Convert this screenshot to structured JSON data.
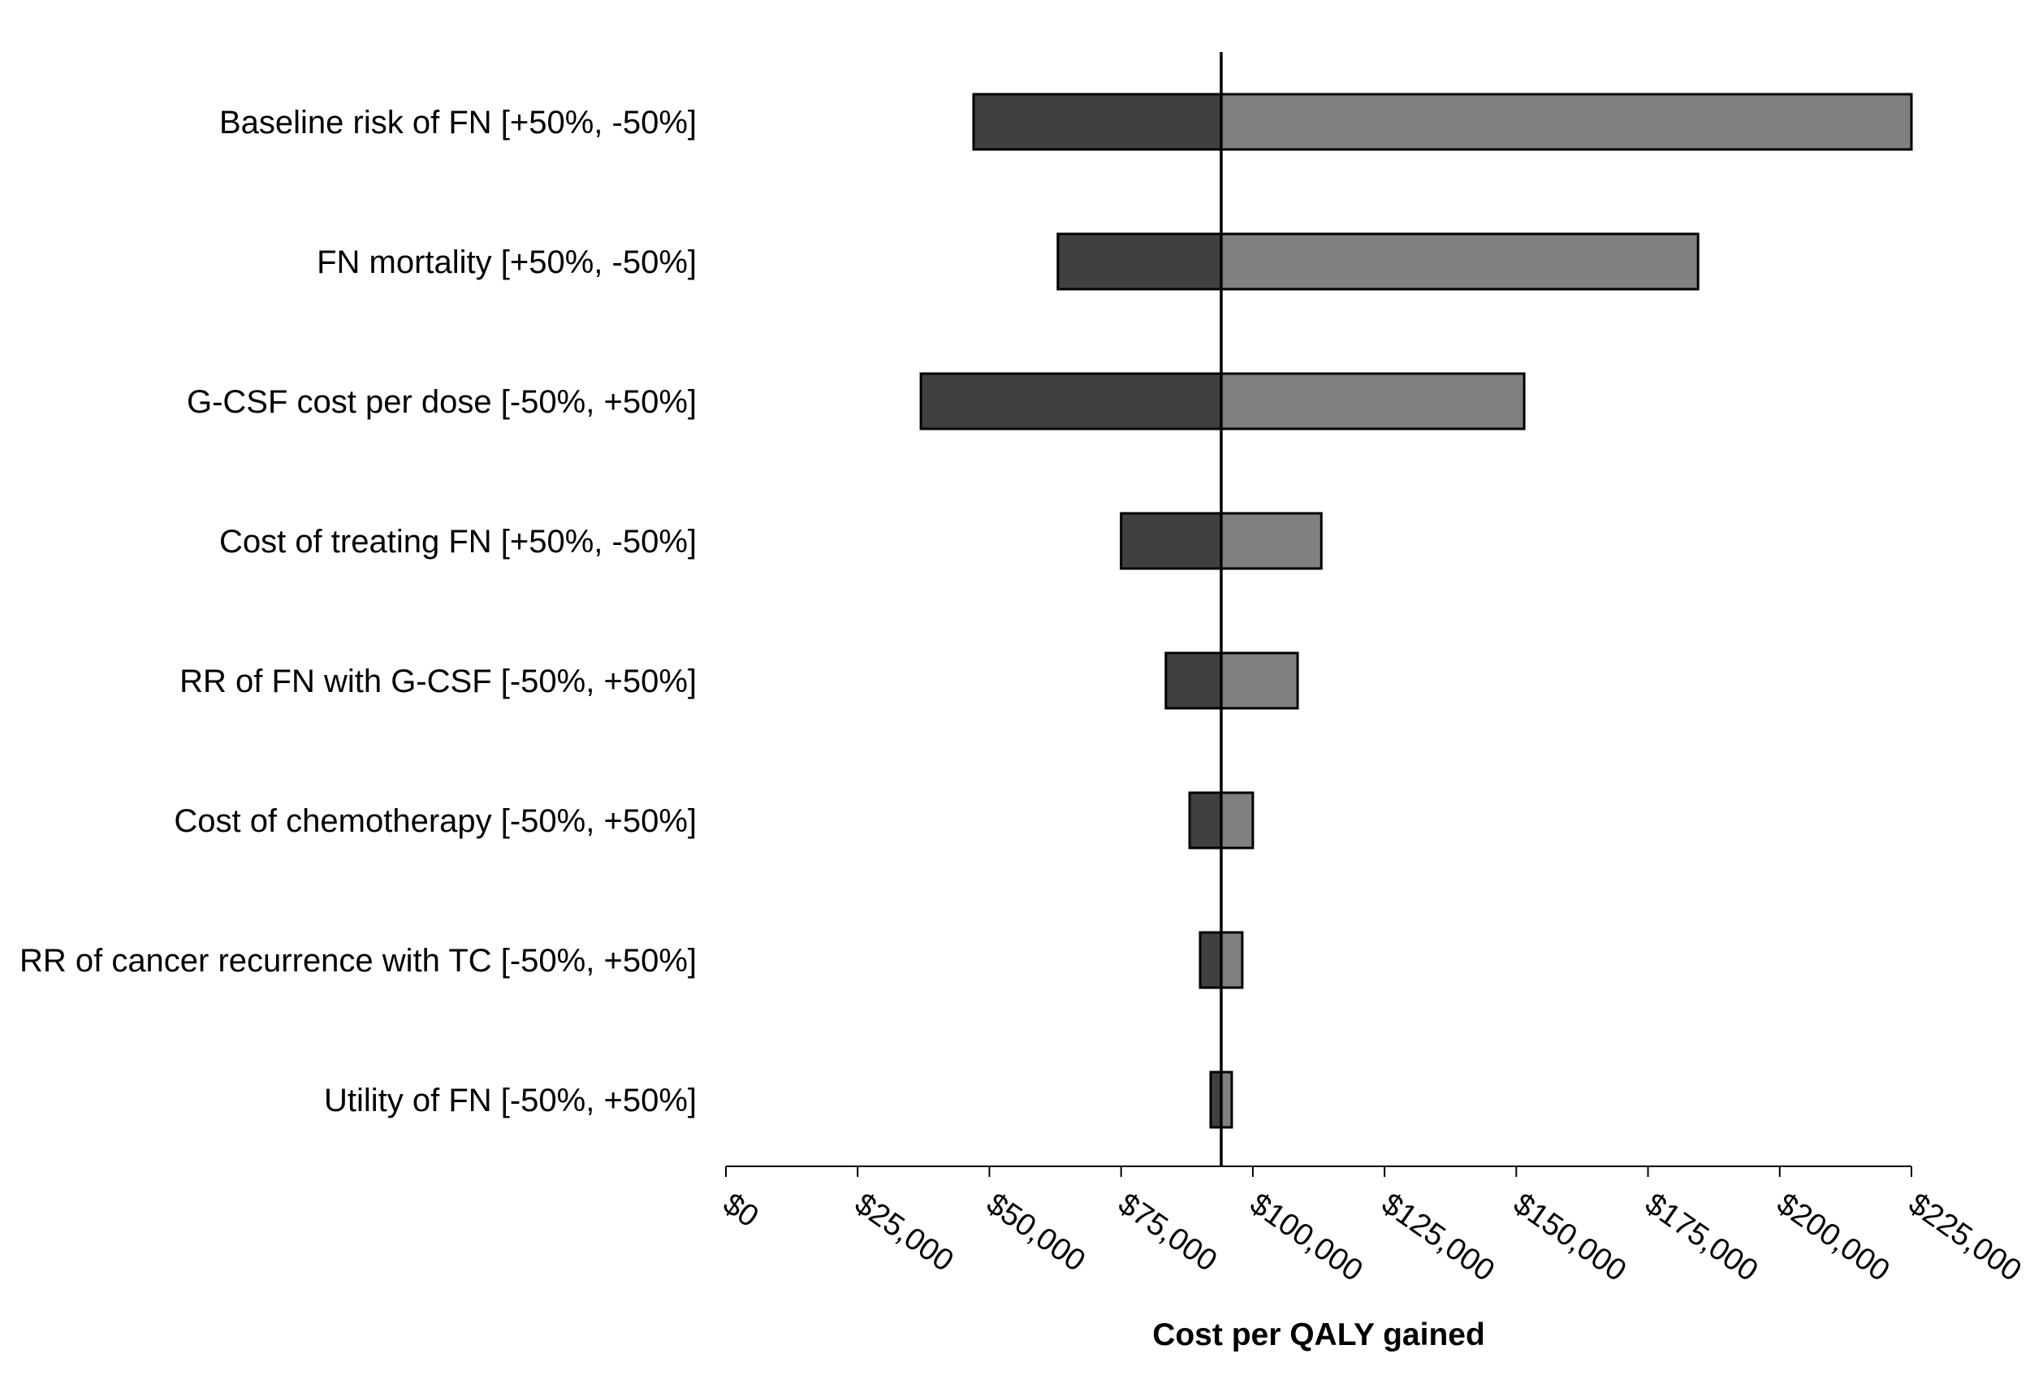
{
  "chart_data": {
    "type": "bar",
    "orientation": "horizontal",
    "style": "tornado",
    "title": "",
    "xlabel": "Cost per QALY gained",
    "ylabel": "",
    "xlim": [
      0,
      225000
    ],
    "base_value": 94000,
    "x_ticks": [
      0,
      25000,
      50000,
      75000,
      100000,
      125000,
      150000,
      175000,
      200000,
      225000
    ],
    "x_tick_labels": [
      "$0",
      "$25,000",
      "$50,000",
      "$75,000",
      "$100,000",
      "$125,000",
      "$150,000",
      "$175,000",
      "$200,000",
      "$225,000"
    ],
    "categories": [
      "Baseline risk of FN [+50%, -50%]",
      "FN mortality [+50%, -50%]",
      "G-CSF cost per dose [-50%, +50%]",
      "Cost of treating FN [+50%, -50%]",
      "RR of FN with G-CSF [-50%, +50%]",
      "Cost of chemotherapy [-50%, +50%]",
      "RR of cancer recurrence with TC [-50%, +50%]",
      "Utility of FN [-50%, +50%]"
    ],
    "low_values": [
      47000,
      63000,
      37000,
      75000,
      83500,
      88000,
      90000,
      92000
    ],
    "high_values": [
      225000,
      184500,
      151500,
      113000,
      108500,
      100000,
      98000,
      96000
    ],
    "colors": {
      "low": "#404040",
      "high": "#808080",
      "edge": "#000000",
      "axis": "#000000"
    },
    "grid": false,
    "legend": "none"
  }
}
